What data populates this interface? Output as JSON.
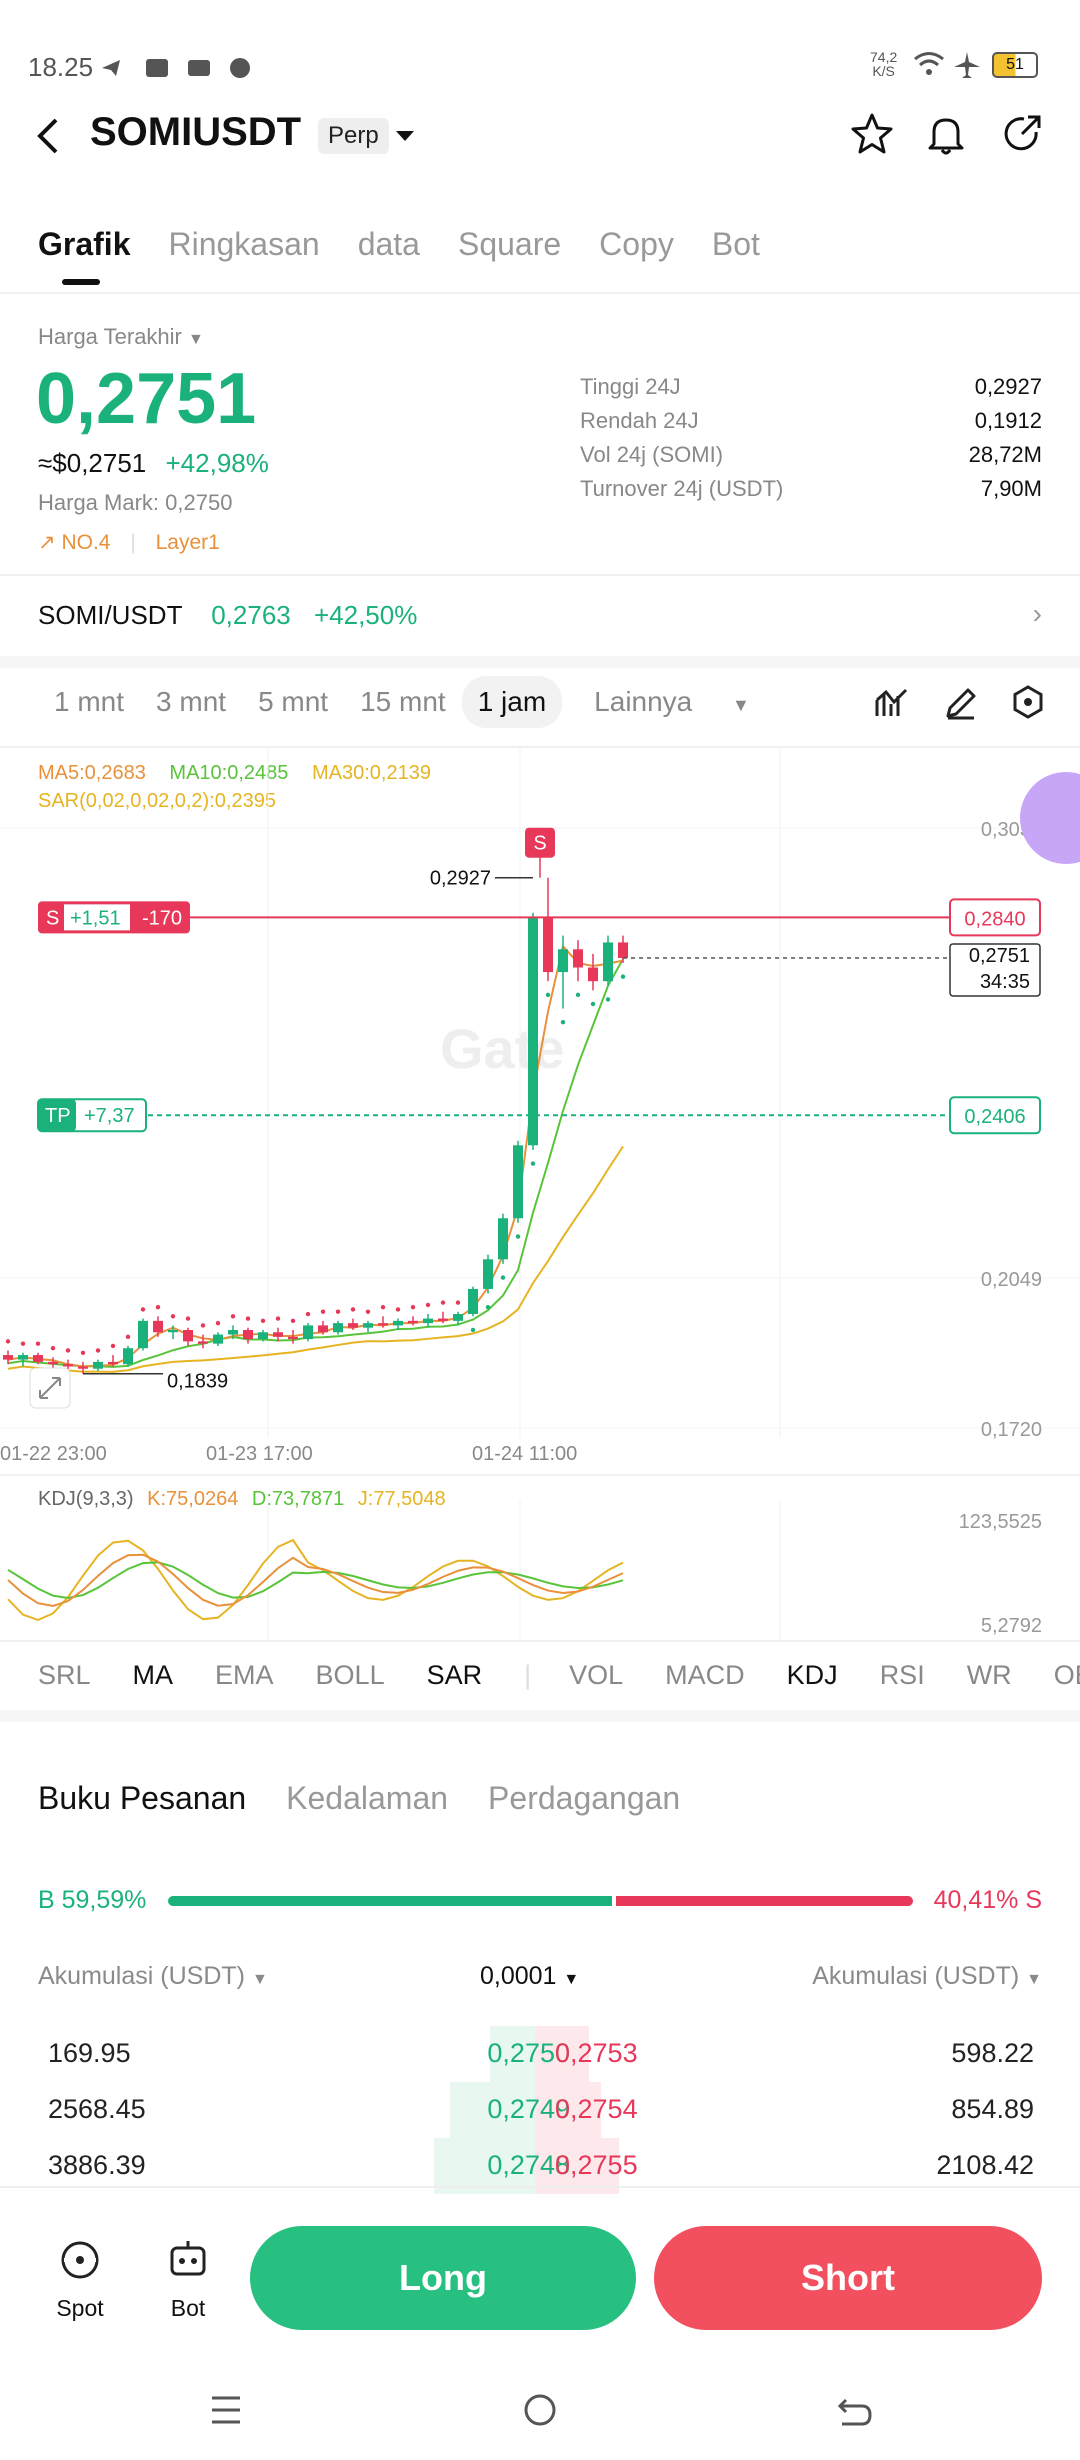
{
  "status_bar": {
    "time": "18.25",
    "network_speed_value": "74,2",
    "network_speed_unit": "K/S",
    "battery": "51"
  },
  "header": {
    "symbol": "SOMIUSDT",
    "contract_type": "Perp"
  },
  "tabs": [
    "Grafik",
    "Ringkasan",
    "data",
    "Square",
    "Copy",
    "Bot"
  ],
  "price": {
    "label": "Harga Terakhir",
    "last": "0,2751",
    "approx_usd": "≈$0,2751",
    "change_pct": "+42,98%",
    "mark_label": "Harga Mark:",
    "mark_value": "0,2750",
    "rank_tag": "NO.4",
    "category_tag": "Layer1"
  },
  "stats": [
    {
      "label": "Tinggi 24J",
      "value": "0,2927"
    },
    {
      "label": "Rendah 24J",
      "value": "0,1912"
    },
    {
      "label": "Vol 24j (SOMI)",
      "value": "28,72M"
    },
    {
      "label": "Turnover 24j (USDT)",
      "value": "7,90M"
    }
  ],
  "spot_pair": {
    "symbol": "SOMI/USDT",
    "price": "0,2763",
    "change": "+42,50%"
  },
  "intervals": {
    "items": [
      "1 mnt",
      "3 mnt",
      "5 mnt",
      "15 mnt",
      "1 jam"
    ],
    "selected": "1 jam",
    "more_label": "Lainnya"
  },
  "chart_legend": {
    "ma5": "MA5:0,2683",
    "ma10": "MA10:0,2485",
    "ma30": "MA30:0,2139",
    "sar": "SAR(0,02,0,02,0,2):0,2395"
  },
  "chart_labels": {
    "high_marker": "0,2927",
    "low_marker": "0,1839",
    "signal": "S",
    "position_side": "S",
    "position_pnl": "+1,51",
    "position_qty": "-170",
    "position_price": "0,2840",
    "tp_label": "TP",
    "tp_pnl": "+7,37",
    "tp_price": "0,2406",
    "current_price": "0,2751",
    "countdown": "34:35",
    "watermark": "Gate"
  },
  "colors": {
    "up": "#1ab27a",
    "down": "#e8385a",
    "ma5": "#e8913a",
    "ma10": "#58c43a",
    "ma30": "#e6b422"
  },
  "chart_data": [
    {
      "type": "candlestick",
      "y_ticks": [
        "0,3036",
        "0,2049",
        "0,1720"
      ],
      "x_ticks": [
        "01-22 23:00",
        "01-23 17:00",
        "01-24 11:00"
      ],
      "candles": [
        [
          0.188,
          0.189,
          0.186,
          0.187
        ],
        [
          0.187,
          0.1885,
          0.1855,
          0.188
        ],
        [
          0.188,
          0.1885,
          0.186,
          0.1865
        ],
        [
          0.1865,
          0.1875,
          0.185,
          0.186
        ],
        [
          0.186,
          0.187,
          0.1845,
          0.1855
        ],
        [
          0.1855,
          0.1865,
          0.1839,
          0.185
        ],
        [
          0.185,
          0.187,
          0.1845,
          0.1865
        ],
        [
          0.1865,
          0.188,
          0.1855,
          0.186
        ],
        [
          0.186,
          0.19,
          0.1855,
          0.1895
        ],
        [
          0.1895,
          0.196,
          0.189,
          0.1955
        ],
        [
          0.1955,
          0.1965,
          0.192,
          0.193
        ],
        [
          0.193,
          0.1945,
          0.1915,
          0.1935
        ],
        [
          0.1935,
          0.194,
          0.19,
          0.191
        ],
        [
          0.191,
          0.1925,
          0.1895,
          0.1905
        ],
        [
          0.1905,
          0.193,
          0.19,
          0.1925
        ],
        [
          0.1925,
          0.1945,
          0.1915,
          0.1935
        ],
        [
          0.1935,
          0.194,
          0.1905,
          0.1915
        ],
        [
          0.1915,
          0.1935,
          0.191,
          0.193
        ],
        [
          0.193,
          0.194,
          0.191,
          0.192
        ],
        [
          0.192,
          0.1935,
          0.1905,
          0.1915
        ],
        [
          0.1915,
          0.195,
          0.191,
          0.1945
        ],
        [
          0.1945,
          0.1955,
          0.1925,
          0.193
        ],
        [
          0.193,
          0.1955,
          0.1925,
          0.195
        ],
        [
          0.195,
          0.196,
          0.1935,
          0.194
        ],
        [
          0.194,
          0.1955,
          0.193,
          0.195
        ],
        [
          0.195,
          0.1965,
          0.194,
          0.1945
        ],
        [
          0.1945,
          0.196,
          0.1935,
          0.1955
        ],
        [
          0.1955,
          0.1965,
          0.1945,
          0.195
        ],
        [
          0.195,
          0.197,
          0.194,
          0.196
        ],
        [
          0.196,
          0.1975,
          0.195,
          0.1955
        ],
        [
          0.1955,
          0.1975,
          0.1945,
          0.197
        ],
        [
          0.197,
          0.203,
          0.1965,
          0.2025
        ],
        [
          0.2025,
          0.21,
          0.2015,
          0.209
        ],
        [
          0.209,
          0.219,
          0.208,
          0.218
        ],
        [
          0.218,
          0.235,
          0.217,
          0.234
        ],
        [
          0.234,
          0.285,
          0.233,
          0.284
        ],
        [
          0.284,
          0.2927,
          0.27,
          0.272
        ],
        [
          0.272,
          0.28,
          0.264,
          0.277
        ],
        [
          0.277,
          0.279,
          0.27,
          0.273
        ],
        [
          0.273,
          0.276,
          0.268,
          0.27
        ],
        [
          0.27,
          0.28,
          0.269,
          0.2785
        ],
        [
          0.2785,
          0.28,
          0.274,
          0.2751
        ]
      ]
    },
    {
      "type": "line",
      "title": "KDJ(9,3,3)",
      "k": "K:75,0264",
      "d": "D:73,7871",
      "j": "J:77,5048",
      "y_ticks": [
        "123,5525",
        "5,2792"
      ]
    }
  ],
  "indicator_tabs": {
    "main": [
      "SRL",
      "MA",
      "EMA",
      "BOLL",
      "SAR"
    ],
    "sub": [
      "VOL",
      "MACD",
      "KDJ",
      "RSI",
      "WR",
      "OBV"
    ]
  },
  "order_book": {
    "tabs": [
      "Buku Pesanan",
      "Kedalaman",
      "Perdagangan"
    ],
    "buy_ratio": "B 59,59%",
    "sell_ratio": "40,41% S",
    "buy_fraction": 0.5959,
    "acc_left": "Akumulasi (USDT)",
    "tick": "0,0001",
    "acc_right": "Akumulasi (USDT)",
    "rows": [
      {
        "acc_bid": "169.95",
        "bid": "0,2750",
        "ask": "0,2753",
        "acc_ask": "598.22",
        "bid_depth": 0.5,
        "ask_depth": 0.45
      },
      {
        "acc_bid": "2568.45",
        "bid": "0,2749",
        "ask": "0,2754",
        "acc_ask": "854.89",
        "bid_depth": 0.75,
        "ask_depth": 0.55
      },
      {
        "acc_bid": "3886.39",
        "bid": "0,2748",
        "ask": "0,2755",
        "acc_ask": "2108.42",
        "bid_depth": 0.85,
        "ask_depth": 0.7
      }
    ]
  },
  "bottom": {
    "spot": "Spot",
    "bot": "Bot",
    "long": "Long",
    "short": "Short"
  }
}
